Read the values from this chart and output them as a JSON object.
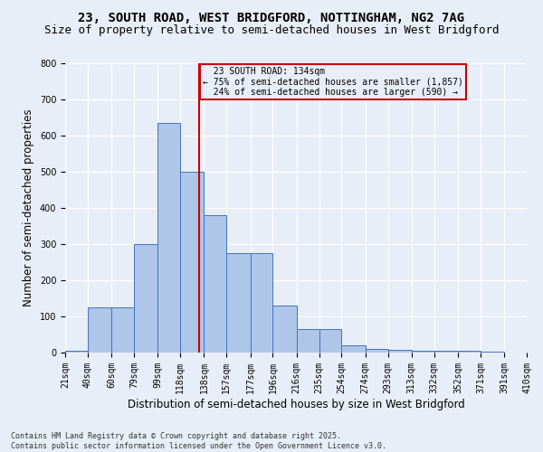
{
  "title_line1": "23, SOUTH ROAD, WEST BRIDGFORD, NOTTINGHAM, NG2 7AG",
  "title_line2": "Size of property relative to semi-detached houses in West Bridgford",
  "xlabel": "Distribution of semi-detached houses by size in West Bridgford",
  "ylabel": "Number of semi-detached properties",
  "bins": [
    "21sqm",
    "40sqm",
    "60sqm",
    "79sqm",
    "99sqm",
    "118sqm",
    "138sqm",
    "157sqm",
    "177sqm",
    "196sqm",
    "216sqm",
    "235sqm",
    "254sqm",
    "274sqm",
    "293sqm",
    "313sqm",
    "332sqm",
    "352sqm",
    "371sqm",
    "391sqm",
    "410sqm"
  ],
  "bin_edges": [
    21,
    40,
    60,
    79,
    99,
    118,
    138,
    157,
    177,
    196,
    216,
    235,
    254,
    274,
    293,
    313,
    332,
    352,
    371,
    391,
    410
  ],
  "values": [
    5,
    125,
    125,
    300,
    635,
    500,
    380,
    275,
    275,
    130,
    65,
    65,
    20,
    10,
    7,
    5,
    5,
    5,
    3,
    0,
    0
  ],
  "bar_color": "#aec6e8",
  "bar_edge_color": "#4472c4",
  "property_size": 134,
  "property_label": "23 SOUTH ROAD: 134sqm",
  "pct_smaller": 75,
  "n_smaller": 1857,
  "pct_larger": 24,
  "n_larger": 590,
  "vline_color": "#cc0000",
  "box_edge_color": "#cc0000",
  "ylim": [
    0,
    800
  ],
  "yticks": [
    0,
    100,
    200,
    300,
    400,
    500,
    600,
    700,
    800
  ],
  "footnote_line1": "Contains HM Land Registry data © Crown copyright and database right 2025.",
  "footnote_line2": "Contains public sector information licensed under the Open Government Licence v3.0.",
  "bg_color": "#e8eef7",
  "title_fontsize": 10,
  "subtitle_fontsize": 9,
  "tick_fontsize": 7,
  "label_fontsize": 8.5,
  "footnote_fontsize": 6
}
